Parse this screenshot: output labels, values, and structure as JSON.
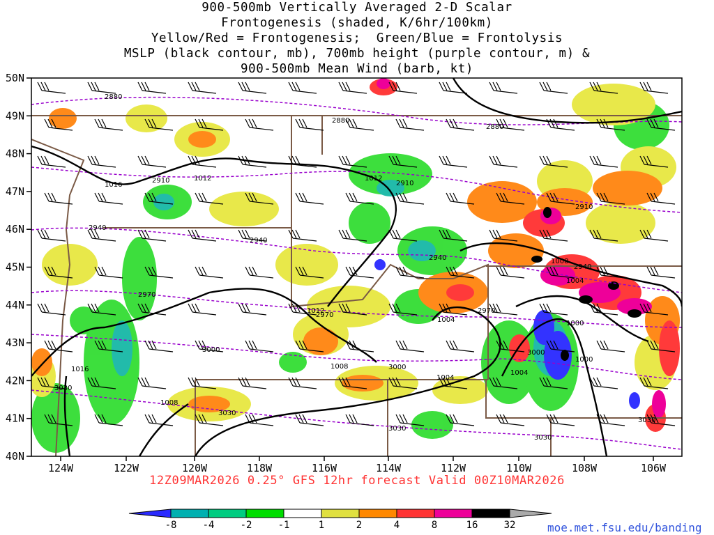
{
  "title": {
    "lines": [
      "900-500mb Vertically Averaged 2-D Scalar",
      "Frontogenesis (shaded, K/6hr/100km)",
      "Yellow/Red = Frontogenesis;  Green/Blue = Frontolysis",
      "MSLP (black contour, mb), 700mb height (purple contour, m) &",
      "900-500mb Mean Wind (barb, kt)"
    ]
  },
  "axes": {
    "lat_labels": [
      "50N",
      "49N",
      "48N",
      "47N",
      "46N",
      "45N",
      "44N",
      "43N",
      "42N",
      "41N",
      "40N"
    ],
    "lon_labels": [
      "124W",
      "122W",
      "120W",
      "118W",
      "116W",
      "114W",
      "112W",
      "110W",
      "108W",
      "106W"
    ]
  },
  "footer": {
    "valid_text": "12Z09MAR2026 0.25° GFS 12hr forecast Valid 00Z10MAR2026"
  },
  "credit": "moe.met.fsu.edu/banding",
  "colorbar": {
    "labels": [
      "-8",
      "-4",
      "-2",
      "-1",
      "1",
      "2",
      "4",
      "8",
      "16",
      "32"
    ],
    "colors": [
      "#2a2aff",
      "#00b0b0",
      "#00cc80",
      "#00dd00",
      "#ffffff",
      "#e0e040",
      "#ff8800",
      "#ff3333",
      "#ee0099",
      "#000000",
      "#aaaaaa"
    ]
  },
  "contour_labels": {
    "mslp": [
      "1016",
      "1012",
      "1012",
      "1012",
      "1016",
      "1008",
      "1008",
      "1004",
      "1004",
      "1004",
      "1004",
      "1000",
      "1000",
      "1008",
      "1012"
    ],
    "height700": [
      "2880",
      "2880",
      "2880",
      "2910",
      "2910",
      "2910",
      "2940",
      "2940",
      "2940",
      "2940",
      "2970",
      "2970",
      "2970",
      "3000",
      "3000",
      "3000",
      "3030",
      "3030",
      "3030",
      "3030",
      "3030",
      "3000"
    ]
  },
  "colors": {
    "mslp_contour": "#000000",
    "height_contour": "#9900cc",
    "border": "#7a5a46",
    "frontolysis": "#00dd00",
    "frontogenesis": "#ff8800"
  }
}
